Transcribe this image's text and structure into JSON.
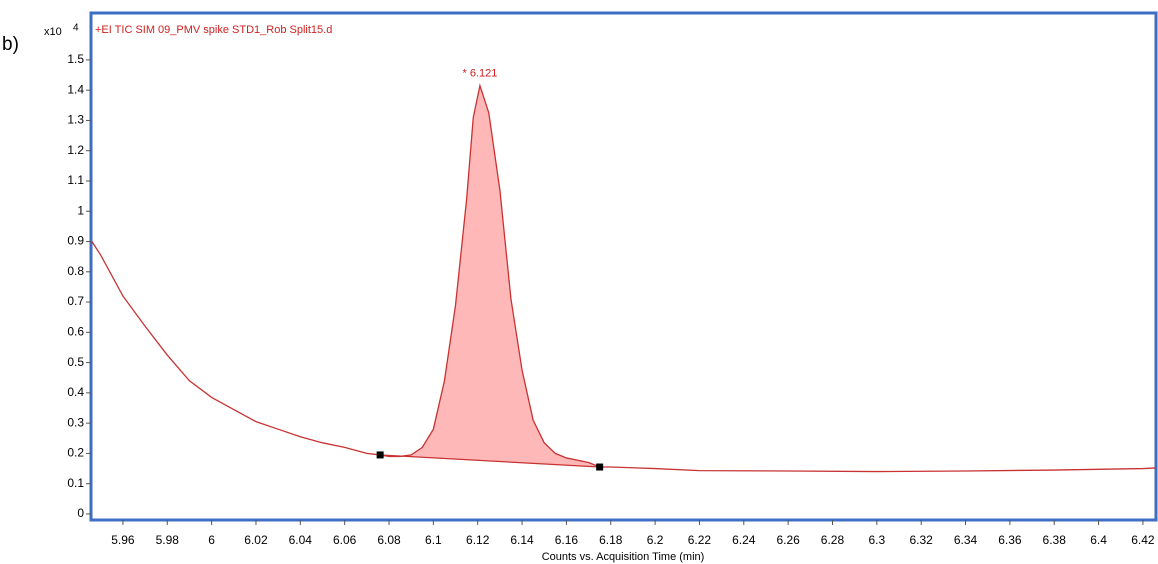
{
  "chart_data": {
    "type": "line",
    "panel_label": "b)",
    "title": "+EI TIC SIM 09_PMV spike STD1_Rob Split15.d",
    "y_multiplier": {
      "base": "x10",
      "exponent": 4
    },
    "xlabel": "Counts vs. Acquisition Time (min)",
    "xlim": [
      5.9456,
      6.4259
    ],
    "ylim": [
      -0.02,
      1.655
    ],
    "xticks": [
      5.96,
      5.98,
      6,
      6.02,
      6.04,
      6.06,
      6.08,
      6.1,
      6.12,
      6.14,
      6.16,
      6.18,
      6.2,
      6.22,
      6.24,
      6.26,
      6.28,
      6.3,
      6.32,
      6.34,
      6.36,
      6.38,
      6.4,
      6.42
    ],
    "yticks": [
      0,
      0.1,
      0.2,
      0.3,
      0.4,
      0.5,
      0.6,
      0.7,
      0.8,
      0.9,
      1,
      1.1,
      1.2,
      1.3,
      1.4,
      1.5
    ],
    "series": [
      {
        "color": "#c83232",
        "fill": "#ffb8b8",
        "x": [
          5.946,
          5.95,
          5.96,
          5.97,
          5.98,
          5.99,
          6.0,
          6.01,
          6.02,
          6.03,
          6.04,
          6.05,
          6.06,
          6.07,
          6.076,
          6.08,
          6.085,
          6.09,
          6.095,
          6.1,
          6.105,
          6.11,
          6.115,
          6.118,
          6.121,
          6.125,
          6.13,
          6.135,
          6.14,
          6.145,
          6.15,
          6.155,
          6.16,
          6.17,
          6.175,
          6.18,
          6.2,
          6.22,
          6.26,
          6.3,
          6.34,
          6.38,
          6.42,
          6.4259
        ],
        "values": [
          0.9,
          0.855,
          0.72,
          0.62,
          0.525,
          0.44,
          0.385,
          0.345,
          0.305,
          0.28,
          0.255,
          0.235,
          0.22,
          0.2,
          0.195,
          0.19,
          0.19,
          0.195,
          0.22,
          0.28,
          0.44,
          0.69,
          1.04,
          1.31,
          1.415,
          1.325,
          1.07,
          0.71,
          0.475,
          0.31,
          0.235,
          0.2,
          0.185,
          0.17,
          0.155,
          0.155,
          0.15,
          0.143,
          0.142,
          0.14,
          0.142,
          0.145,
          0.15,
          0.152
        ]
      }
    ],
    "markers": {
      "color": "#000000",
      "x": [
        6.076,
        6.175
      ],
      "values": [
        0.195,
        0.155
      ]
    },
    "peak_annotation": {
      "label": "* 6.121",
      "x": 6.121,
      "y": 1.415
    }
  }
}
